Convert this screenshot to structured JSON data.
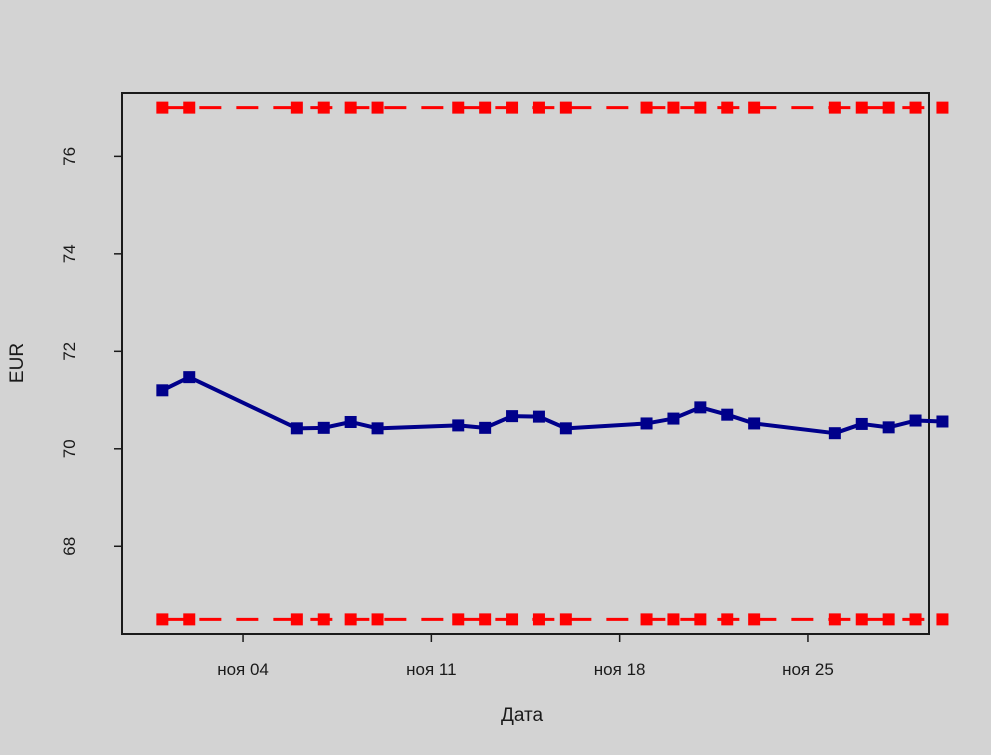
{
  "chart_data": {
    "type": "line",
    "title": "",
    "xlabel": "Дата",
    "ylabel": "EUR",
    "x_ticks": [
      {
        "day": 4,
        "label": "ноя 04"
      },
      {
        "day": 11,
        "label": "ноя 11"
      },
      {
        "day": 18,
        "label": "ноя 18"
      },
      {
        "day": 25,
        "label": "ноя 25"
      }
    ],
    "y_ticks": [
      68,
      70,
      72,
      74,
      76
    ],
    "xlim": [
      -0.5,
      29.5
    ],
    "ylim": [
      66.2,
      77.3
    ],
    "grid": false,
    "legend": "none",
    "series": [
      {
        "style": "solid",
        "color": "#00008b",
        "marker": "square",
        "x": [
          1,
          2,
          6,
          7,
          8,
          9,
          12,
          13,
          14,
          15,
          16,
          19,
          20,
          21,
          22,
          23,
          26,
          27,
          28,
          29,
          30
        ],
        "y": [
          71.2,
          71.47,
          70.42,
          70.43,
          70.55,
          70.42,
          70.48,
          70.43,
          70.67,
          70.66,
          70.42,
          70.52,
          70.62,
          70.85,
          70.7,
          70.52,
          70.32,
          70.51,
          70.44,
          70.58,
          70.56
        ]
      },
      {
        "style": "dashed",
        "color": "#ff0000",
        "marker": "square",
        "x": [
          1,
          2,
          6,
          7,
          8,
          9,
          12,
          13,
          14,
          15,
          16,
          19,
          20,
          21,
          22,
          23,
          26,
          27,
          28,
          29,
          30
        ],
        "y": [
          77.0,
          77.0,
          77.0,
          77.0,
          77.0,
          77.0,
          77.0,
          77.0,
          77.0,
          77.0,
          77.0,
          77.0,
          77.0,
          77.0,
          77.0,
          77.0,
          77.0,
          77.0,
          77.0,
          77.0,
          77.0
        ]
      },
      {
        "style": "dashed",
        "color": "#ff0000",
        "marker": "square",
        "x": [
          1,
          2,
          6,
          7,
          8,
          9,
          12,
          13,
          14,
          15,
          16,
          19,
          20,
          21,
          22,
          23,
          26,
          27,
          28,
          29,
          30
        ],
        "y": [
          66.5,
          66.5,
          66.5,
          66.5,
          66.5,
          66.5,
          66.5,
          66.5,
          66.5,
          66.5,
          66.5,
          66.5,
          66.5,
          66.5,
          66.5,
          66.5,
          66.5,
          66.5,
          66.5,
          66.5,
          66.5
        ]
      }
    ]
  }
}
